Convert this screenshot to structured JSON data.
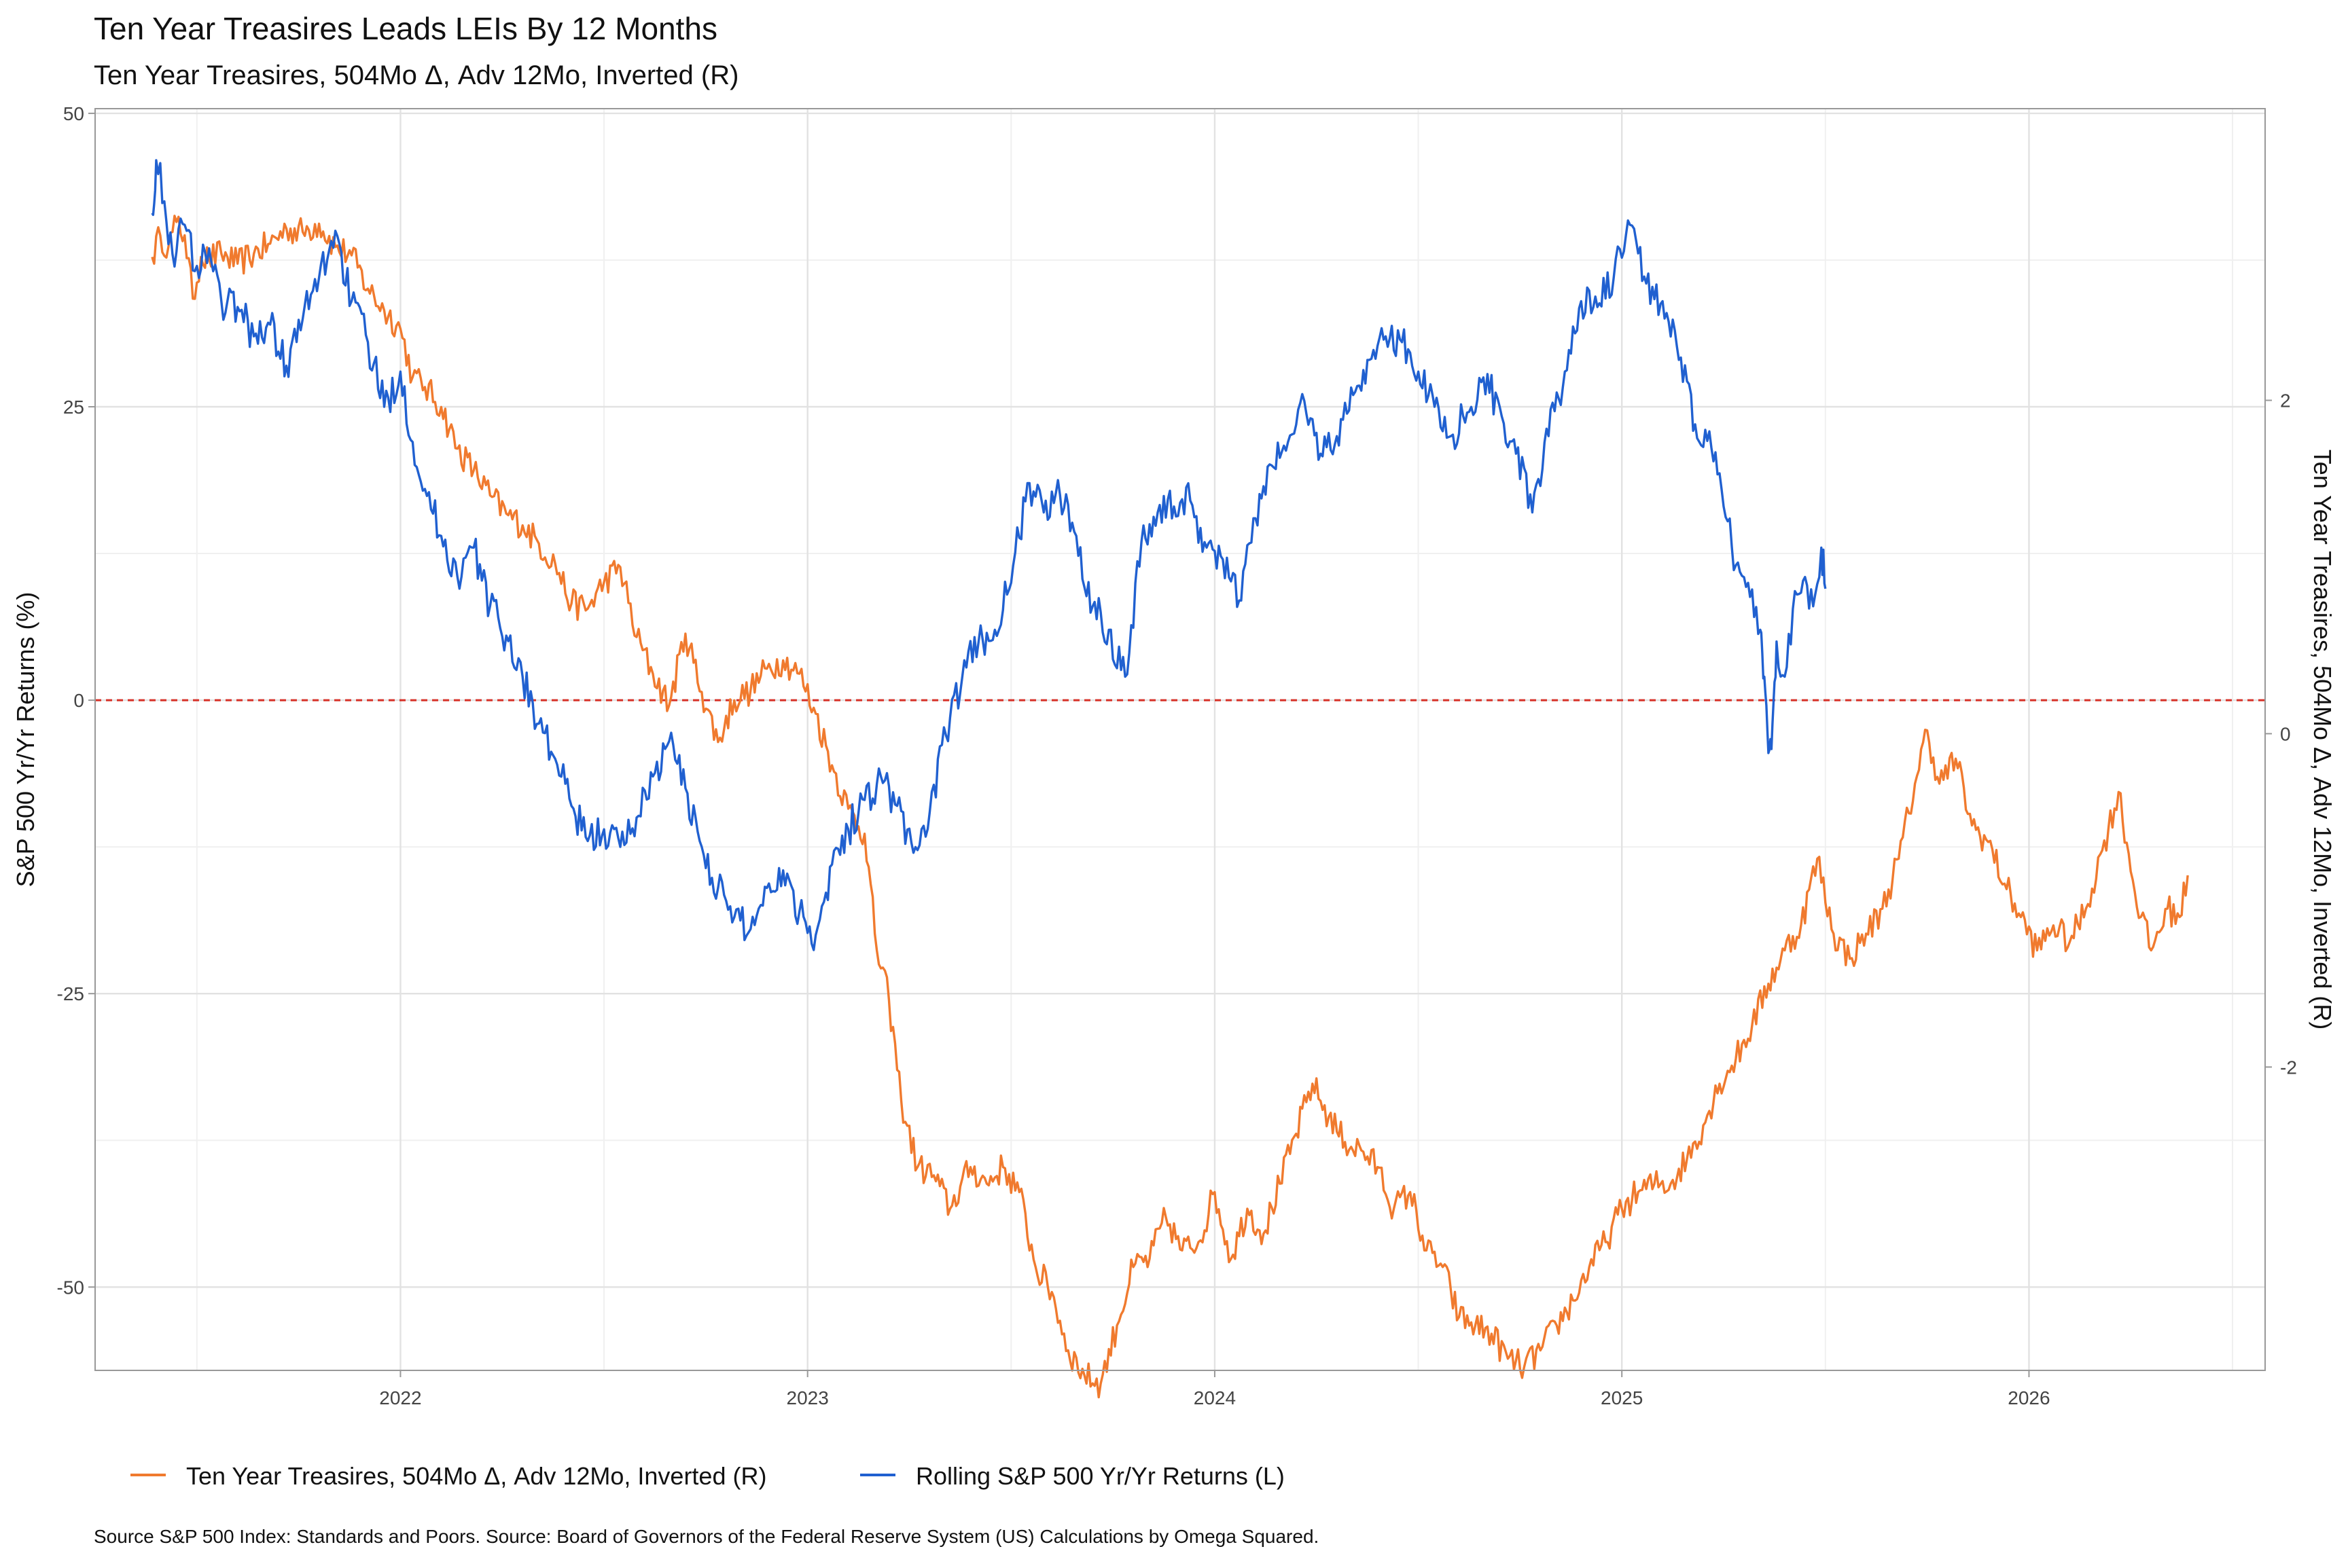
{
  "chart_data": {
    "type": "line",
    "title": "Ten Year Treasires  Leads LEIs By  12  Months",
    "subtitle": "Ten Year Treasires, 504Mo Δ, Adv 12Mo, Inverted (R)",
    "ylabel_left": "S&P 500 Yr/Yr Returns (%)",
    "ylabel_right": "Ten Year Treasires, 504Mo Δ, Adv 12Mo, Inverted (R)",
    "caption": "Source S&P 500 Index: Standards and Poors. Source:  Board of Governors of the Federal Reserve System (US) Calculations by Omega Squared.",
    "x_ticks": [
      "2022",
      "2023",
      "2024",
      "2025",
      "2026"
    ],
    "x_tick_values": [
      2022.0,
      2023.0,
      2024.0,
      2025.0,
      2026.0
    ],
    "xlim": [
      2021.25,
      2026.58
    ],
    "y_left_ticks": [
      50,
      25,
      0,
      -25,
      -50
    ],
    "y_left_lim": [
      -57.1,
      50.4
    ],
    "y_right_ticks": [
      2,
      0,
      -2
    ],
    "y_right_lim": [
      -3.82,
      3.75
    ],
    "reference_line": {
      "axis": "left",
      "value": 0,
      "color": "#d73027",
      "style": "dashed"
    },
    "grid": true,
    "legend_position": "bottom",
    "series": [
      {
        "name": "Ten Year Treasires, 504Mo Δ, Adv 12Mo, Inverted (R)",
        "axis": "right",
        "color": "#f07a2e",
        "x": [
          2021.39,
          2021.41,
          2021.43,
          2021.45,
          2021.47,
          2021.49,
          2021.51,
          2021.53,
          2021.56,
          2021.6,
          2021.64,
          2021.68,
          2021.72,
          2021.76,
          2021.8,
          2021.84,
          2021.88,
          2021.92,
          2021.96,
          2022.0,
          2022.03,
          2022.06,
          2022.1,
          2022.14,
          2022.18,
          2022.22,
          2022.26,
          2022.3,
          2022.34,
          2022.38,
          2022.42,
          2022.46,
          2022.5,
          2022.54,
          2022.58,
          2022.62,
          2022.66,
          2022.7,
          2022.74,
          2022.78,
          2022.82,
          2022.86,
          2022.9,
          2022.94,
          2022.98,
          2023.02,
          2023.06,
          2023.1,
          2023.14,
          2023.17,
          2023.2,
          2023.23,
          2023.27,
          2023.31,
          2023.35,
          2023.4,
          2023.44,
          2023.48,
          2023.52,
          2023.56,
          2023.6,
          2023.64,
          2023.68,
          2023.72,
          2023.76,
          2023.8,
          2023.84,
          2023.88,
          2023.92,
          2023.96,
          2024.0,
          2024.04,
          2024.08,
          2024.12,
          2024.16,
          2024.2,
          2024.24,
          2024.28,
          2024.32,
          2024.36,
          2024.4,
          2024.44,
          2024.48,
          2024.52,
          2024.56,
          2024.6,
          2024.64,
          2024.68,
          2024.72,
          2024.76,
          2024.8,
          2024.84,
          2024.88,
          2024.92,
          2024.96,
          2025.0,
          2025.04,
          2025.08,
          2025.12,
          2025.16,
          2025.2,
          2025.24,
          2025.28,
          2025.32,
          2025.36,
          2025.4,
          2025.44,
          2025.48,
          2025.52,
          2025.56,
          2025.6,
          2025.64,
          2025.68,
          2025.72,
          2025.75,
          2025.78,
          2025.82,
          2025.86,
          2025.9,
          2025.94,
          2025.98,
          2026.02,
          2026.06,
          2026.1,
          2026.14,
          2026.18,
          2026.22,
          2026.26,
          2026.3,
          2026.34,
          2026.37,
          2026.39
        ],
        "y": [
          2.86,
          2.99,
          2.92,
          3.07,
          2.99,
          2.61,
          2.86,
          2.85,
          2.88,
          2.82,
          2.88,
          2.94,
          3.03,
          3.01,
          3.06,
          2.92,
          2.87,
          2.67,
          2.54,
          2.43,
          2.14,
          2.08,
          1.96,
          1.71,
          1.58,
          1.43,
          1.32,
          1.25,
          1.14,
          1.02,
          0.78,
          0.75,
          0.91,
          1.0,
          0.58,
          0.36,
          0.17,
          0.6,
          0.25,
          -0.05,
          0.2,
          0.26,
          0.39,
          0.44,
          0.36,
          0.12,
          -0.19,
          -0.45,
          -0.6,
          -1.3,
          -1.6,
          -2.2,
          -2.6,
          -2.65,
          -2.85,
          -2.6,
          -2.7,
          -2.6,
          -2.75,
          -3.2,
          -3.35,
          -3.7,
          -3.85,
          -3.9,
          -3.55,
          -3.2,
          -3.15,
          -2.9,
          -3.1,
          -3.05,
          -2.75,
          -3.15,
          -2.85,
          -3.0,
          -2.7,
          -2.4,
          -2.1,
          -2.3,
          -2.45,
          -2.5,
          -2.6,
          -2.85,
          -2.75,
          -3.1,
          -3.2,
          -3.5,
          -3.55,
          -3.6,
          -3.75,
          -3.8,
          -3.7,
          -3.55,
          -3.4,
          -3.2,
          -3.05,
          -2.85,
          -2.75,
          -2.7,
          -2.7,
          -2.55,
          -2.35,
          -2.1,
          -1.95,
          -1.75,
          -1.5,
          -1.3,
          -1.15,
          -0.75,
          -1.2,
          -1.35,
          -1.2,
          -1.05,
          -0.75,
          -0.3,
          0.02,
          -0.3,
          -0.15,
          -0.55,
          -0.65,
          -0.9,
          -1.1,
          -1.3,
          -1.15,
          -1.25,
          -1.05,
          -0.7,
          -0.35,
          -0.95,
          -1.3,
          -1.05,
          -1.1,
          -0.85
        ],
        "x_extra": [],
        "y_extra": []
      },
      {
        "name": "Rolling S&P 500 Yr/Yr Returns (L)",
        "axis": "left",
        "color": "#2060d0",
        "x": [
          2021.39,
          2021.4,
          2021.42,
          2021.44,
          2021.47,
          2021.5,
          2021.53,
          2021.56,
          2021.6,
          2021.64,
          2021.68,
          2021.72,
          2021.76,
          2021.8,
          2021.84,
          2021.88,
          2021.92,
          2021.96,
          2022.0,
          2022.03,
          2022.06,
          2022.1,
          2022.14,
          2022.18,
          2022.22,
          2022.26,
          2022.3,
          2022.34,
          2022.38,
          2022.42,
          2022.46,
          2022.5,
          2022.54,
          2022.58,
          2022.62,
          2022.66,
          2022.7,
          2022.74,
          2022.78,
          2022.82,
          2022.86,
          2022.9,
          2022.94,
          2022.98,
          2023.02,
          2023.06,
          2023.1,
          2023.14,
          2023.18,
          2023.22,
          2023.26,
          2023.3,
          2023.34,
          2023.38,
          2023.42,
          2023.46,
          2023.5,
          2023.54,
          2023.58,
          2023.62,
          2023.66,
          2023.7,
          2023.74,
          2023.78,
          2023.82,
          2023.86,
          2023.9,
          2023.94,
          2023.98,
          2024.02,
          2024.06,
          2024.1,
          2024.14,
          2024.18,
          2024.22,
          2024.26,
          2024.3,
          2024.34,
          2024.38,
          2024.42,
          2024.46,
          2024.5,
          2024.54,
          2024.58,
          2024.62,
          2024.66,
          2024.7,
          2024.74,
          2024.78,
          2024.82,
          2024.86,
          2024.9,
          2024.94,
          2024.98,
          2025.02,
          2025.06,
          2025.1,
          2025.14,
          2025.18,
          2025.22,
          2025.25,
          2025.28,
          2025.31,
          2025.34
        ],
        "y": [
          41.5,
          46.0,
          42.5,
          38.0,
          40.5,
          37.0,
          38.5,
          34.0,
          33.5,
          31.0,
          32.0,
          28.5,
          32.5,
          36.0,
          40.0,
          34.0,
          30.5,
          25.0,
          28.0,
          22.0,
          18.0,
          14.0,
          10.5,
          13.0,
          8.0,
          5.5,
          2.0,
          -2.0,
          -5.0,
          -9.0,
          -12.0,
          -11.0,
          -12.5,
          -10.0,
          -6.5,
          -3.5,
          -7.5,
          -12.5,
          -16.0,
          -18.5,
          -19.5,
          -16.0,
          -14.5,
          -18.0,
          -20.0,
          -14.0,
          -11.0,
          -8.5,
          -6.5,
          -9.0,
          -13.0,
          -9.5,
          -3.0,
          2.0,
          5.0,
          6.0,
          10.0,
          18.5,
          16.0,
          17.5,
          14.0,
          8.0,
          6.0,
          2.0,
          13.5,
          16.0,
          16.5,
          17.0,
          13.0,
          12.0,
          8.5,
          15.5,
          20.0,
          22.0,
          25.5,
          21.0,
          22.5,
          26.0,
          29.0,
          31.0,
          30.5,
          28.0,
          25.0,
          22.5,
          24.5,
          27.5,
          25.0,
          21.0,
          16.0,
          22.5,
          28.0,
          34.0,
          33.5,
          36.0,
          40.5,
          35.5,
          34.0,
          29.0,
          23.5,
          21.5,
          16.5,
          11.5,
          10.0,
          6.0
        ],
        "x_extra": [
          2025.35,
          2025.36,
          2025.37,
          2025.38,
          2025.4,
          2025.43,
          2025.45,
          2025.47,
          2025.49,
          2025.5
        ],
        "y_extra": [
          2.0,
          -4.5,
          -2.0,
          5.0,
          2.0,
          9.0,
          10.5,
          8.0,
          13.0,
          9.5
        ]
      }
    ]
  }
}
